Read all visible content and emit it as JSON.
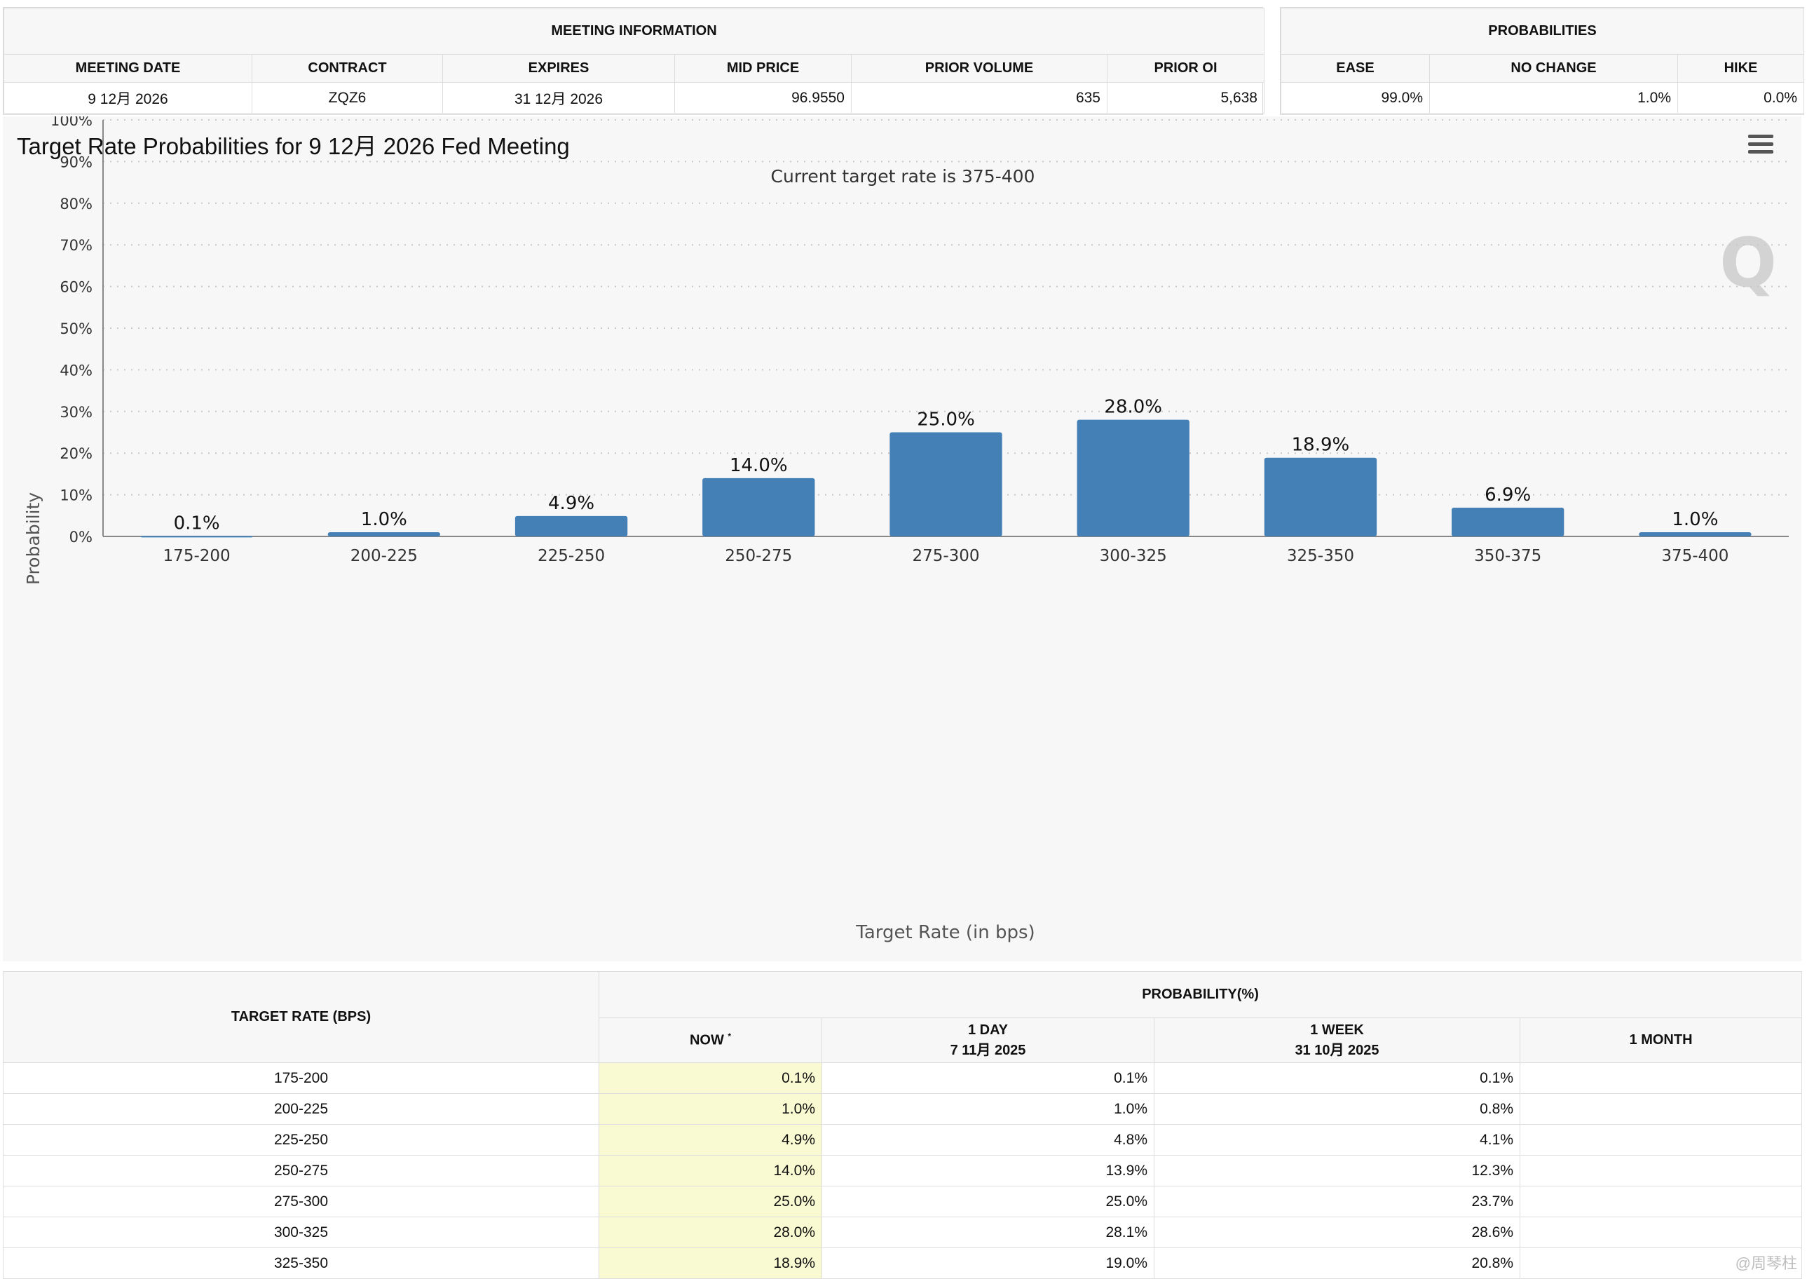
{
  "meeting_info": {
    "title": "MEETING INFORMATION",
    "headers": [
      "MEETING DATE",
      "CONTRACT",
      "EXPIRES",
      "MID PRICE",
      "PRIOR VOLUME",
      "PRIOR OI"
    ],
    "values": [
      "9 12月 2026",
      "ZQZ6",
      "31 12月 2026",
      "96.9550",
      "635",
      "5,638"
    ]
  },
  "probabilities": {
    "title": "PROBABILITIES",
    "headers": [
      "EASE",
      "NO CHANGE",
      "HIKE"
    ],
    "values": [
      "99.0%",
      "1.0%",
      "0.0%"
    ]
  },
  "chart": {
    "title": "Target Rate Probabilities for 9 12月 2026 Fed Meeting",
    "watermark": "Q",
    "colors": {
      "bar": "#4480b6",
      "grid": "#c8c8c8",
      "axis": "#888888",
      "text": "#333333"
    }
  },
  "chart_data": {
    "type": "bar",
    "title": "Target Rate Probabilities for 9 12月 2026 Fed Meeting",
    "subtitle": "Current target rate is 375-400",
    "xlabel": "Target Rate (in bps)",
    "ylabel": "Probability",
    "categories": [
      "175-200",
      "200-225",
      "225-250",
      "250-275",
      "275-300",
      "300-325",
      "325-350",
      "350-375",
      "375-400"
    ],
    "values": [
      0.1,
      1.0,
      4.9,
      14.0,
      25.0,
      28.0,
      18.9,
      6.9,
      1.0
    ],
    "data_labels": [
      "0.1%",
      "1.0%",
      "4.9%",
      "14.0%",
      "25.0%",
      "28.0%",
      "18.9%",
      "6.9%",
      "1.0%"
    ],
    "yticks": [
      "0%",
      "10%",
      "20%",
      "30%",
      "40%",
      "50%",
      "60%",
      "70%",
      "80%",
      "90%",
      "100%"
    ],
    "ylim": [
      0,
      100
    ],
    "grid": true,
    "legend": "none"
  },
  "history": {
    "rate_header": "TARGET RATE (BPS)",
    "prob_header": "PROBABILITY(%)",
    "now_label": "NOW",
    "now_mark": "*",
    "day_label": "1 DAY",
    "day_date": "7 11月 2025",
    "week_label": "1 WEEK",
    "week_date": "31 10月 2025",
    "month_label": "1 MONTH",
    "rows": [
      {
        "rate": "175-200",
        "now": "0.1%",
        "day": "0.1%",
        "week": "0.1%",
        "month": ""
      },
      {
        "rate": "200-225",
        "now": "1.0%",
        "day": "1.0%",
        "week": "0.8%",
        "month": ""
      },
      {
        "rate": "225-250",
        "now": "4.9%",
        "day": "4.8%",
        "week": "4.1%",
        "month": ""
      },
      {
        "rate": "250-275",
        "now": "14.0%",
        "day": "13.9%",
        "week": "12.3%",
        "month": ""
      },
      {
        "rate": "275-300",
        "now": "25.0%",
        "day": "25.0%",
        "week": "23.7%",
        "month": ""
      },
      {
        "rate": "300-325",
        "now": "28.0%",
        "day": "28.1%",
        "week": "28.6%",
        "month": ""
      },
      {
        "rate": "325-350",
        "now": "18.9%",
        "day": "19.0%",
        "week": "20.8%",
        "month": ""
      }
    ]
  },
  "watermark_text": "@周琴柱"
}
